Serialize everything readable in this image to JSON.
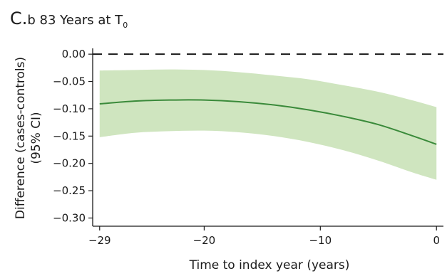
{
  "chart_data": {
    "type": "line",
    "title_prefix": "C.",
    "title_main": "b 83 Years at T",
    "title_subscript": "0",
    "xlabel": "Time to index year (years)",
    "ylabel_line1": "Difference (cases-controls)",
    "ylabel_line2": "(95% CI)",
    "xlim": [
      -29.6,
      0.6
    ],
    "ylim": [
      -0.315,
      0.008
    ],
    "xticks": [
      -29,
      -20,
      -10,
      0
    ],
    "xtick_labels": [
      "−29",
      "−20",
      "−10",
      "0"
    ],
    "yticks": [
      0.0,
      -0.05,
      -0.1,
      -0.15,
      -0.2,
      -0.25,
      -0.3
    ],
    "ytick_labels": [
      "0.00",
      "−0.05",
      "−0.10",
      "−0.15",
      "−0.20",
      "−0.25",
      "−0.30"
    ],
    "reference_line": {
      "y": 0.0,
      "style": "dashed",
      "color": "#1a1a1a"
    },
    "colors": {
      "line": "#3a8a3a",
      "band": "#cfe5bf"
    },
    "series": [
      {
        "x": [
          -29,
          -26,
          -23,
          -20,
          -17,
          -14,
          -11,
          -8,
          -5,
          -2,
          0
        ],
        "y": [
          -0.091,
          -0.086,
          -0.084,
          -0.084,
          -0.087,
          -0.093,
          -0.102,
          -0.114,
          -0.129,
          -0.15,
          -0.165
        ],
        "lower": [
          -0.152,
          -0.144,
          -0.141,
          -0.14,
          -0.143,
          -0.15,
          -0.161,
          -0.176,
          -0.195,
          -0.217,
          -0.23
        ],
        "upper": [
          -0.03,
          -0.029,
          -0.028,
          -0.029,
          -0.033,
          -0.039,
          -0.046,
          -0.057,
          -0.069,
          -0.085,
          -0.097
        ]
      }
    ]
  }
}
